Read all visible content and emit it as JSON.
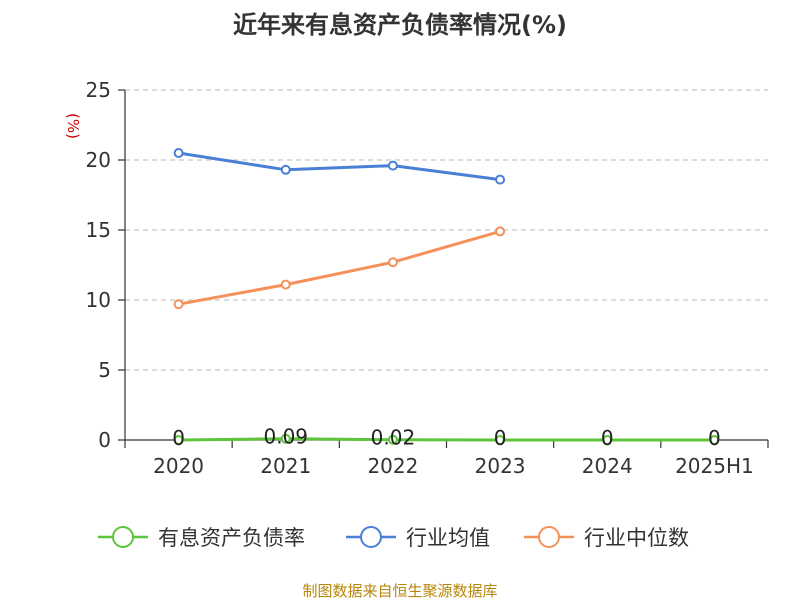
{
  "chart_data": {
    "type": "line",
    "title": "近年来有息资产负债率情况(%)",
    "ylabel": "(%)",
    "xlabel": "",
    "ylim": [
      0,
      25
    ],
    "yticks": [
      "0",
      "5",
      "10",
      "15",
      "20",
      "25"
    ],
    "categories": [
      "2020",
      "2021",
      "2022",
      "2023",
      "2024",
      "2025H1"
    ],
    "grid": true,
    "legend_position": "bottom",
    "series": [
      {
        "name": "有息资产负债率",
        "color": "#5dc43b",
        "values": [
          0,
          0.09,
          0.02,
          0,
          0,
          0
        ],
        "labels": [
          "0",
          "0.09",
          "0.02",
          "0",
          "0",
          "0"
        ]
      },
      {
        "name": "行业均值",
        "color": "#4a7fd6",
        "values": [
          20.5,
          19.3,
          19.6,
          18.6,
          null,
          null
        ]
      },
      {
        "name": "行业中位数",
        "color": "#f5905a",
        "values": [
          9.7,
          11.1,
          12.7,
          14.9,
          null,
          null
        ]
      }
    ]
  },
  "source": "制图数据来自恒生聚源数据库"
}
